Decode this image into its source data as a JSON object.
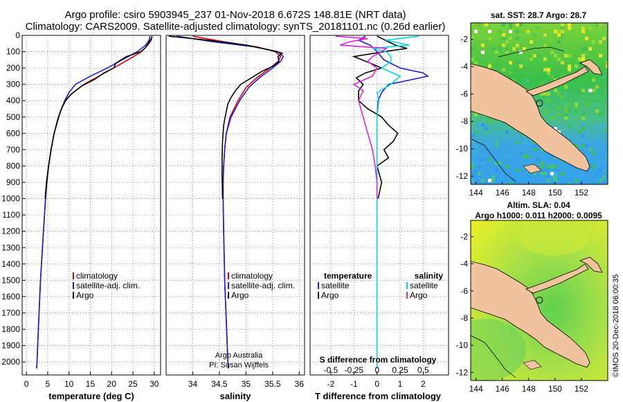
{
  "title_line1": "Argo profile: csiro 5903945_237 01-Nov-2018 6.672S 148.81E (NRT data)",
  "title_line2": "Climatology: CARS2009. Satellite-adjusted climatology: synTS_20181101.nc (0.26d earlier)",
  "side_text": "©IMOS 20-Dec-2018 06:00:35",
  "colors": {
    "climatology": "#e00000",
    "satellite": "#1a1ad6",
    "argo": "#000000",
    "sat_salinity": "#00d8e8",
    "argo_salinity": "#e020e0",
    "land": "#f2c39c"
  },
  "chart_data": [
    {
      "type": "line",
      "name": "temperature",
      "xlabel": "temperature (deg C)",
      "xlim": [
        -1,
        31.5
      ],
      "ylim": [
        2080,
        0
      ],
      "xticks": [
        "0",
        "5",
        "10",
        "15",
        "20",
        "25",
        "30"
      ],
      "yticks": [
        "0",
        "100",
        "200",
        "300",
        "400",
        "500",
        "600",
        "700",
        "800",
        "900",
        "1000",
        "1100",
        "1200",
        "1300",
        "1400",
        "1500",
        "1600",
        "1700",
        "1800",
        "1900",
        "2000"
      ],
      "legend": [
        "climatology",
        "satellite-adj. clim.",
        "Argo"
      ],
      "series": [
        {
          "name": "climatology",
          "depth": [
            5,
            30,
            60,
            100,
            140,
            200,
            250,
            300,
            350,
            400,
            500,
            600,
            700,
            800,
            900,
            1000,
            1200,
            1500,
            1800,
            2000,
            2040
          ],
          "values": [
            29.5,
            29.3,
            28.5,
            27.0,
            24.5,
            20.5,
            17.0,
            13.5,
            11.0,
            9.0,
            7.5,
            6.5,
            5.8,
            5.2,
            4.8,
            4.5,
            4.0,
            3.3,
            2.8,
            2.5,
            2.4
          ]
        },
        {
          "name": "satellite-adj. clim.",
          "depth": [
            5,
            30,
            60,
            100,
            150,
            200,
            250,
            300,
            350,
            400,
            500,
            600,
            700,
            800,
            900,
            1000,
            1200,
            1500,
            1800,
            2000,
            2040
          ],
          "values": [
            29.0,
            28.8,
            28.0,
            26.0,
            22.5,
            19.0,
            15.0,
            11.5,
            10.0,
            9.0,
            7.5,
            6.5,
            5.8,
            5.2,
            4.8,
            4.5,
            4.0,
            3.3,
            2.8,
            2.5,
            2.4
          ]
        },
        {
          "name": "Argo",
          "depth": [
            5,
            20,
            50,
            80,
            100,
            130,
            170,
            200,
            230,
            270,
            310,
            360,
            400,
            450,
            500,
            600,
            700,
            800,
            900,
            1000
          ],
          "values": [
            29.5,
            29.3,
            28.6,
            27.8,
            26.8,
            23.5,
            21.0,
            20.5,
            18.2,
            16.0,
            13.0,
            10.5,
            9.2,
            8.2,
            7.6,
            6.5,
            5.8,
            5.2,
            4.7,
            4.4
          ]
        }
      ]
    },
    {
      "type": "line",
      "name": "salinity",
      "xlabel": "salinity",
      "xlim": [
        33.5,
        36.1
      ],
      "ylim": [
        2080,
        0
      ],
      "xticks": [
        "34",
        "34.5",
        "35",
        "35.5",
        "36"
      ],
      "legend": [
        "climatology",
        "satellite-adj. clim.",
        "Argo"
      ],
      "annotations": [
        "Argo Australia",
        "PI: Susan Wijffels"
      ],
      "series": [
        {
          "name": "climatology",
          "depth": [
            5,
            40,
            70,
            100,
            130,
            160,
            200,
            260,
            320,
            400,
            500,
            600,
            700,
            800,
            900,
            1000,
            1200,
            1500,
            2000,
            2040
          ],
          "values": [
            34.0,
            34.6,
            35.2,
            35.55,
            35.65,
            35.6,
            35.45,
            35.2,
            35.0,
            34.85,
            34.7,
            34.63,
            34.6,
            34.58,
            34.57,
            34.57,
            34.58,
            34.6,
            34.66,
            34.67
          ]
        },
        {
          "name": "satellite-adj. clim.",
          "depth": [
            5,
            40,
            70,
            100,
            130,
            160,
            200,
            260,
            320,
            400,
            500,
            600,
            700,
            800,
            900,
            1000,
            1200,
            1500,
            2000,
            2040
          ],
          "values": [
            33.7,
            34.4,
            35.15,
            35.6,
            35.7,
            35.65,
            35.5,
            35.25,
            35.05,
            34.88,
            34.72,
            34.63,
            34.6,
            34.58,
            34.57,
            34.57,
            34.58,
            34.6,
            34.66,
            34.67
          ]
        },
        {
          "name": "Argo",
          "depth": [
            5,
            30,
            60,
            90,
            110,
            130,
            160,
            190,
            220,
            260,
            300,
            340,
            380,
            420,
            480,
            550,
            650,
            750,
            850,
            1000
          ],
          "values": [
            33.55,
            34.3,
            35.0,
            35.45,
            35.68,
            35.6,
            35.62,
            35.5,
            35.3,
            35.1,
            34.9,
            34.8,
            34.72,
            34.66,
            34.62,
            34.58,
            34.56,
            34.55,
            34.55,
            34.56
          ]
        }
      ]
    },
    {
      "type": "line",
      "name": "difference from climatology",
      "xlabel": "T difference from climatology",
      "xlabel2": "S difference from climatology",
      "xlim": [
        -2.9,
        3.1
      ],
      "ylim": [
        2080,
        0
      ],
      "xticks": [
        "-2",
        "-1",
        "0",
        "1",
        "2"
      ],
      "xticks2": [
        "-0.5",
        "-0.25",
        "0",
        "0.25",
        "0.5"
      ],
      "legend_left": [
        "temperature",
        "satellite",
        "Argo"
      ],
      "legend_right": [
        "salinity",
        "satellite",
        "Argo"
      ],
      "series": [
        {
          "name": "temperature satellite",
          "depth": [
            5,
            30,
            60,
            100,
            150,
            200,
            230,
            250,
            280,
            300,
            350,
            400,
            500,
            700,
            1000,
            1500,
            2000,
            2040
          ],
          "values": [
            -0.5,
            -0.8,
            -0.3,
            0.0,
            0.3,
            1.0,
            2.0,
            2.2,
            1.2,
            0.5,
            0.2,
            0.05,
            0.0,
            0.0,
            0.0,
            0.0,
            0.0,
            0.0
          ]
        },
        {
          "name": "temperature Argo",
          "depth": [
            5,
            40,
            60,
            80,
            100,
            130,
            170,
            200,
            230,
            260,
            300,
            340,
            400,
            450,
            500,
            550,
            600,
            650,
            700,
            750,
            800,
            900,
            1000
          ],
          "values": [
            0.0,
            0.5,
            0.8,
            1.3,
            0.3,
            -1.0,
            -0.3,
            0.2,
            -0.5,
            -0.9,
            -0.6,
            -0.8,
            -0.8,
            -0.4,
            0.2,
            0.5,
            0.9,
            0.7,
            0.3,
            0.5,
            0.0,
            0.2,
            0.05
          ]
        },
        {
          "name": "salinity satellite",
          "depth": [
            5,
            30,
            60,
            80,
            100,
            130,
            160,
            200,
            250,
            300,
            350,
            400,
            500,
            700,
            1000,
            1500,
            2000,
            2040
          ],
          "values": [
            0.45,
            0.1,
            0.35,
            -0.05,
            0.1,
            0.15,
            0.15,
            0.05,
            0.25,
            0.15,
            0.0,
            0.02,
            0.0,
            0.0,
            0.0,
            0.0,
            0.0,
            0.0
          ]
        },
        {
          "name": "salinity Argo",
          "depth": [
            5,
            20,
            40,
            60,
            80,
            100,
            130,
            160,
            200,
            250,
            300,
            340,
            400,
            500,
            600,
            700,
            800,
            900,
            1000
          ],
          "values": [
            -0.45,
            -0.1,
            -0.3,
            -0.4,
            0.1,
            0.05,
            -0.05,
            -0.1,
            0.0,
            -0.05,
            -0.25,
            -0.15,
            -0.2,
            -0.15,
            -0.1,
            -0.05,
            -0.02,
            0.0,
            0.0
          ]
        }
      ]
    },
    {
      "type": "heatmap",
      "name": "sst map",
      "title": "sat. SST: 28.7 Argo: 28.7",
      "xlim": [
        143.6,
        154.0
      ],
      "ylim": [
        -12.6,
        -0.8
      ],
      "xticks": [
        "144",
        "146",
        "148",
        "150",
        "152"
      ],
      "yticks": [
        "-2",
        "-4",
        "-6",
        "-8",
        "-10",
        "-12"
      ],
      "float_position": {
        "lon": 148.81,
        "lat": -6.672
      }
    },
    {
      "type": "heatmap",
      "name": "sla map",
      "title": "Altim. SLA: 0.04",
      "subtitle": "Argo h1000: 0.011 h2000: 0.0095",
      "xlim": [
        143.6,
        154.0
      ],
      "ylim": [
        -12.6,
        -0.8
      ],
      "xticks": [
        "144",
        "146",
        "148",
        "150",
        "152"
      ],
      "yticks": [
        "-2",
        "-4",
        "-6",
        "-8",
        "-10",
        "-12"
      ],
      "float_position": {
        "lon": 148.81,
        "lat": -6.672
      }
    }
  ]
}
